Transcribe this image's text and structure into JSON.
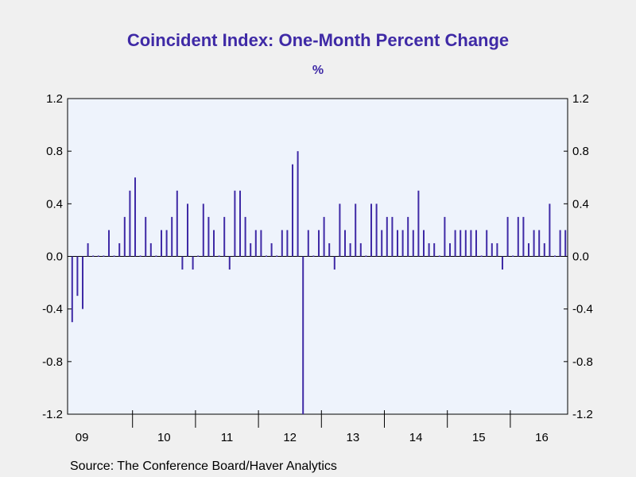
{
  "title": "Coincident Index: One-Month Percent Change",
  "unit": "%",
  "source": "Source:  The Conference Board/Haver Analytics",
  "colors": {
    "bar": "#3f2aa6",
    "plot_bg": "#eef3fc",
    "title": "#3f2aa6"
  },
  "chart_data": {
    "type": "bar",
    "start": "2009-01",
    "ylim": [
      -1.2,
      1.2
    ],
    "yticks": [
      "1.2",
      "0.8",
      "0.4",
      "0.0",
      "-0.4",
      "-0.8",
      "-1.2"
    ],
    "year_labels": [
      "09",
      "10",
      "11",
      "12",
      "13",
      "14",
      "15",
      "16"
    ],
    "grid": false,
    "values": [
      -0.5,
      -0.3,
      -0.4,
      0.1,
      0.0,
      0.0,
      0.0,
      0.2,
      0.0,
      0.1,
      0.3,
      0.5,
      0.6,
      0.0,
      0.3,
      0.1,
      0.0,
      0.2,
      0.2,
      0.3,
      0.5,
      -0.1,
      0.4,
      -0.1,
      0.0,
      0.4,
      0.3,
      0.2,
      0.0,
      0.3,
      -0.1,
      0.5,
      0.5,
      0.3,
      0.1,
      0.2,
      0.2,
      0.0,
      0.1,
      0.0,
      0.2,
      0.2,
      0.7,
      0.8,
      -1.2,
      0.2,
      0.0,
      0.2,
      0.3,
      0.1,
      -0.1,
      0.4,
      0.2,
      0.1,
      0.4,
      0.1,
      0.0,
      0.4,
      0.4,
      0.2,
      0.3,
      0.3,
      0.2,
      0.2,
      0.3,
      0.2,
      0.5,
      0.2,
      0.1,
      0.1,
      0.0,
      0.3,
      0.1,
      0.2,
      0.2,
      0.2,
      0.2,
      0.2,
      0.0,
      0.2,
      0.1,
      0.1,
      -0.1,
      0.3,
      0.0,
      0.3,
      0.3,
      0.1,
      0.2,
      0.2,
      0.1,
      0.4,
      0.0,
      0.2,
      0.2
    ]
  }
}
